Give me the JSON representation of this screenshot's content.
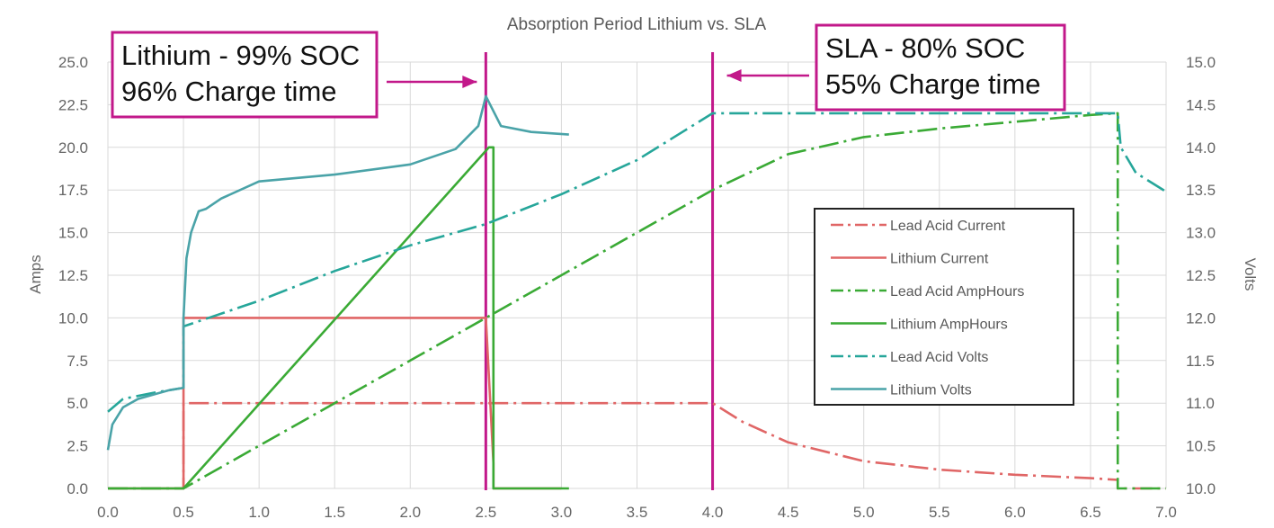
{
  "chart_data": {
    "type": "line",
    "title": "Absorption Period Lithium vs. SLA",
    "xlabel": "",
    "ylabel": "Amps",
    "y2label": "Volts",
    "xlim": [
      0,
      7
    ],
    "ylim": [
      0,
      25
    ],
    "y2lim": [
      10,
      15
    ],
    "x_ticks": [
      "0.0",
      "0.5",
      "1.0",
      "1.5",
      "2.0",
      "2.5",
      "3.0",
      "3.5",
      "4.0",
      "4.5",
      "5.0",
      "5.5",
      "6.0",
      "6.5",
      "7.0"
    ],
    "y_ticks": [
      "0.0",
      "2.5",
      "5.0",
      "7.5",
      "10.0",
      "12.5",
      "15.0",
      "17.5",
      "20.0",
      "22.5",
      "25.0"
    ],
    "y2_ticks": [
      "10.0",
      "10.5",
      "11.0",
      "11.5",
      "12.0",
      "12.5",
      "13.0",
      "13.5",
      "14.0",
      "14.5",
      "15.0"
    ],
    "grid": true,
    "legend_position": "right",
    "series": [
      {
        "name": "Lead Acid Current",
        "axis": "left",
        "color": "#e06666",
        "dash": "dashdot",
        "x": [
          0,
          0.5,
          0.5,
          4.0,
          4.2,
          4.5,
          5.0,
          5.5,
          6.0,
          6.5,
          6.68,
          6.68,
          7.0
        ],
        "y": [
          0,
          0,
          5.0,
          5.0,
          3.9,
          2.7,
          1.6,
          1.1,
          0.8,
          0.6,
          0.5,
          0,
          0
        ]
      },
      {
        "name": "Lithium Current",
        "axis": "left",
        "color": "#e06666",
        "dash": "solid",
        "x": [
          0,
          0.5,
          0.5,
          2.5,
          2.55,
          2.55,
          3.0
        ],
        "y": [
          0,
          0,
          10.0,
          10.0,
          1.5,
          0,
          0
        ]
      },
      {
        "name": "Lead Acid AmpHours",
        "axis": "left",
        "color": "#3aaa35",
        "dash": "dashdot",
        "x": [
          0,
          0.5,
          1.0,
          1.5,
          2.0,
          2.5,
          3.0,
          3.5,
          4.0,
          4.5,
          5.0,
          5.5,
          6.0,
          6.5,
          6.68,
          6.68,
          7.0
        ],
        "y": [
          0,
          0,
          2.5,
          5.0,
          7.5,
          10.0,
          12.5,
          15.0,
          17.5,
          19.6,
          20.6,
          21.1,
          21.5,
          21.9,
          22.0,
          0,
          0
        ],
        "end_label": ""
      },
      {
        "name": "Lithium AmpHours",
        "axis": "left",
        "color": "#3aaa35",
        "dash": "solid",
        "x": [
          0,
          0.5,
          2.5,
          2.52,
          2.55,
          2.55,
          3.05
        ],
        "y": [
          0,
          0,
          19.8,
          20.0,
          20.0,
          0,
          0
        ]
      },
      {
        "name": "Lead Acid Volts",
        "axis": "right",
        "color": "#26a69a",
        "dash": "dashdot",
        "x": [
          0,
          0.1,
          0.3,
          0.5,
          0.5,
          1.0,
          1.5,
          2.0,
          2.5,
          3.0,
          3.5,
          4.0,
          5.0,
          6.0,
          6.68,
          6.7,
          6.8,
          7.0
        ],
        "y": [
          10.9,
          11.05,
          11.12,
          11.18,
          11.9,
          12.2,
          12.55,
          12.85,
          13.1,
          13.45,
          13.85,
          14.4,
          14.4,
          14.4,
          14.4,
          14.0,
          13.7,
          13.48
        ]
      },
      {
        "name": "Lithium Volts",
        "axis": "right",
        "color": "#4aa3a8",
        "dash": "solid",
        "x": [
          0,
          0.03,
          0.1,
          0.2,
          0.3,
          0.4,
          0.5,
          0.5,
          0.52,
          0.55,
          0.6,
          0.65,
          0.75,
          1.0,
          1.5,
          2.0,
          2.3,
          2.45,
          2.5,
          2.6,
          2.8,
          3.05
        ],
        "y": [
          10.45,
          10.75,
          10.95,
          11.05,
          11.1,
          11.15,
          11.18,
          12.0,
          12.7,
          13.0,
          13.25,
          13.28,
          13.4,
          13.6,
          13.68,
          13.8,
          13.98,
          14.25,
          14.6,
          14.25,
          14.18,
          14.15
        ]
      }
    ],
    "markers": [
      {
        "x": 2.5,
        "color": "#c2188a"
      },
      {
        "x": 4.0,
        "color": "#c2188a"
      }
    ],
    "callouts": [
      {
        "lines": [
          "Lithium - 99% SOC",
          "96% Charge time"
        ],
        "border": "#c2188a",
        "arrow_to_x": 2.5,
        "arrow_direction": "right"
      },
      {
        "lines": [
          "SLA - 80% SOC",
          "55% Charge time"
        ],
        "border": "#c2188a",
        "arrow_to_x": 4.0,
        "arrow_direction": "left"
      }
    ]
  }
}
